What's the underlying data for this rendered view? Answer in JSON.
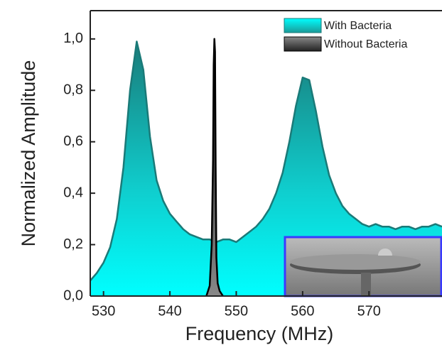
{
  "chart_data": {
    "type": "area",
    "xlabel": "Frequency (MHz)",
    "ylabel": "Normalized Amplitude",
    "xlim": [
      528,
      581
    ],
    "ylim": [
      0,
      1.11
    ],
    "xticks": [
      530,
      540,
      550,
      560,
      570
    ],
    "yticks": [
      {
        "value": 0,
        "label": "0,0"
      },
      {
        "value": 0.2,
        "label": "0,2"
      },
      {
        "value": 0.4,
        "label": "0,4"
      },
      {
        "value": 0.6,
        "label": "0,6"
      },
      {
        "value": 0.8,
        "label": "0,8"
      },
      {
        "value": 1.0,
        "label": "1,0"
      }
    ],
    "legend": "upper right",
    "series": [
      {
        "name": "With Bacteria",
        "color": "#1a7a78",
        "x": [
          528,
          529,
          530,
          531,
          532,
          533,
          534,
          535,
          536,
          537,
          538,
          539,
          540,
          541,
          542,
          543,
          544,
          545,
          546,
          547,
          548,
          549,
          550,
          551,
          552,
          553,
          554,
          555,
          556,
          557,
          558,
          559,
          560,
          561,
          562,
          563,
          564,
          565,
          566,
          567,
          568,
          569,
          570,
          571,
          572,
          573,
          574,
          575,
          576,
          577,
          578,
          579,
          580,
          581
        ],
        "values": [
          0.06,
          0.09,
          0.13,
          0.19,
          0.3,
          0.5,
          0.8,
          0.99,
          0.88,
          0.62,
          0.45,
          0.37,
          0.32,
          0.29,
          0.26,
          0.24,
          0.23,
          0.22,
          0.22,
          0.21,
          0.22,
          0.22,
          0.21,
          0.23,
          0.25,
          0.27,
          0.3,
          0.34,
          0.4,
          0.48,
          0.6,
          0.74,
          0.85,
          0.84,
          0.72,
          0.58,
          0.47,
          0.4,
          0.35,
          0.32,
          0.3,
          0.28,
          0.27,
          0.28,
          0.27,
          0.27,
          0.26,
          0.27,
          0.27,
          0.26,
          0.27,
          0.27,
          0.28,
          0.27
        ]
      },
      {
        "name": "Without Bacteria",
        "color": "#000000",
        "x": [
          545.5,
          546,
          546.3,
          546.5,
          546.6,
          546.7,
          546.8,
          546.9,
          547,
          547.2,
          547.5,
          548
        ],
        "values": [
          0,
          0.04,
          0.2,
          0.53,
          0.9,
          1.0,
          0.95,
          0.5,
          0.15,
          0.05,
          0.02,
          0
        ]
      }
    ]
  }
}
